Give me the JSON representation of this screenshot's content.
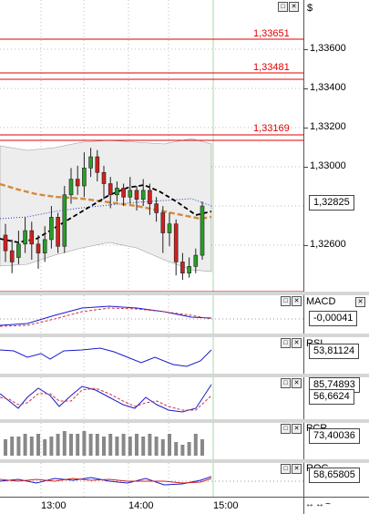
{
  "currency_symbol": "$",
  "price_axis": {
    "ticks": [
      "1,33600",
      "1,33400",
      "1,33200",
      "1,33000",
      "1,32600"
    ],
    "current_price": "1,32825"
  },
  "levels": [
    "1,33651",
    "1,33481",
    "1,33169"
  ],
  "indicators": {
    "macd": {
      "name": "MACD",
      "value": "-0,00041"
    },
    "rsi": {
      "name": "RSI",
      "value": "53,81124"
    },
    "stoch": {
      "value1": "85,74893",
      "value2": "56,6624"
    },
    "pcr": {
      "name": "PCR",
      "value": "73,40036"
    },
    "roc": {
      "name": "ROC",
      "value": "58,65805"
    }
  },
  "time_axis": [
    "13:00",
    "14:00",
    "15:00"
  ],
  "window_buttons": {
    "restore": "□",
    "close": "✕"
  },
  "nav_arrows": "↔↔~",
  "colors": {
    "level": "#e00000",
    "bull": "#2a9d2a",
    "bear": "#d02020",
    "ma": "#d48a3a",
    "macd": "#1a1acc",
    "signal": "#cc3344"
  },
  "chart_data": {
    "type": "candlestick",
    "ylim": [
      1.3248,
      1.337
    ],
    "candles": [
      [
        1.327,
        1.3263,
        1.3275,
        1.3258
      ],
      [
        1.3263,
        1.3258,
        1.3268,
        1.3253
      ],
      [
        1.326,
        1.3266,
        1.3272,
        1.3257
      ],
      [
        1.3266,
        1.3272,
        1.3278,
        1.3262
      ],
      [
        1.3272,
        1.3266,
        1.3276,
        1.3259
      ],
      [
        1.3266,
        1.3262,
        1.327,
        1.3255
      ],
      [
        1.3262,
        1.3268,
        1.3274,
        1.3258
      ],
      [
        1.3268,
        1.3278,
        1.3283,
        1.3264
      ],
      [
        1.3278,
        1.3265,
        1.328,
        1.3262
      ],
      [
        1.3265,
        1.3288,
        1.3292,
        1.3262
      ],
      [
        1.3288,
        1.3295,
        1.33,
        1.3284
      ],
      [
        1.3295,
        1.3292,
        1.3301,
        1.3288
      ],
      [
        1.3292,
        1.33,
        1.3307,
        1.3287
      ],
      [
        1.33,
        1.3305,
        1.3309,
        1.3296
      ],
      [
        1.3305,
        1.3298,
        1.3308,
        1.3294
      ],
      [
        1.3298,
        1.3293,
        1.3301,
        1.3286
      ],
      [
        1.3293,
        1.3288,
        1.3296,
        1.3282
      ],
      [
        1.3288,
        1.3291,
        1.3294,
        1.3285
      ],
      [
        1.3291,
        1.3287,
        1.3293,
        1.3283
      ],
      [
        1.3287,
        1.329,
        1.3296,
        1.3284
      ],
      [
        1.329,
        1.3286,
        1.3292,
        1.3281
      ],
      [
        1.3286,
        1.329,
        1.3295,
        1.3283
      ],
      [
        1.329,
        1.3284,
        1.3293,
        1.3279
      ],
      [
        1.3284,
        1.328,
        1.3287,
        1.3276
      ],
      [
        1.328,
        1.3271,
        1.3283,
        1.3262
      ],
      [
        1.3271,
        1.3275,
        1.328,
        1.3265
      ],
      [
        1.3275,
        1.3258,
        1.3277,
        1.3252
      ],
      [
        1.3258,
        1.3253,
        1.3262,
        1.325
      ],
      [
        1.3253,
        1.3256,
        1.326,
        1.3251
      ],
      [
        1.3256,
        1.3261,
        1.3264,
        1.3253
      ],
      [
        1.3261,
        1.3283,
        1.3285,
        1.3259
      ]
    ]
  }
}
